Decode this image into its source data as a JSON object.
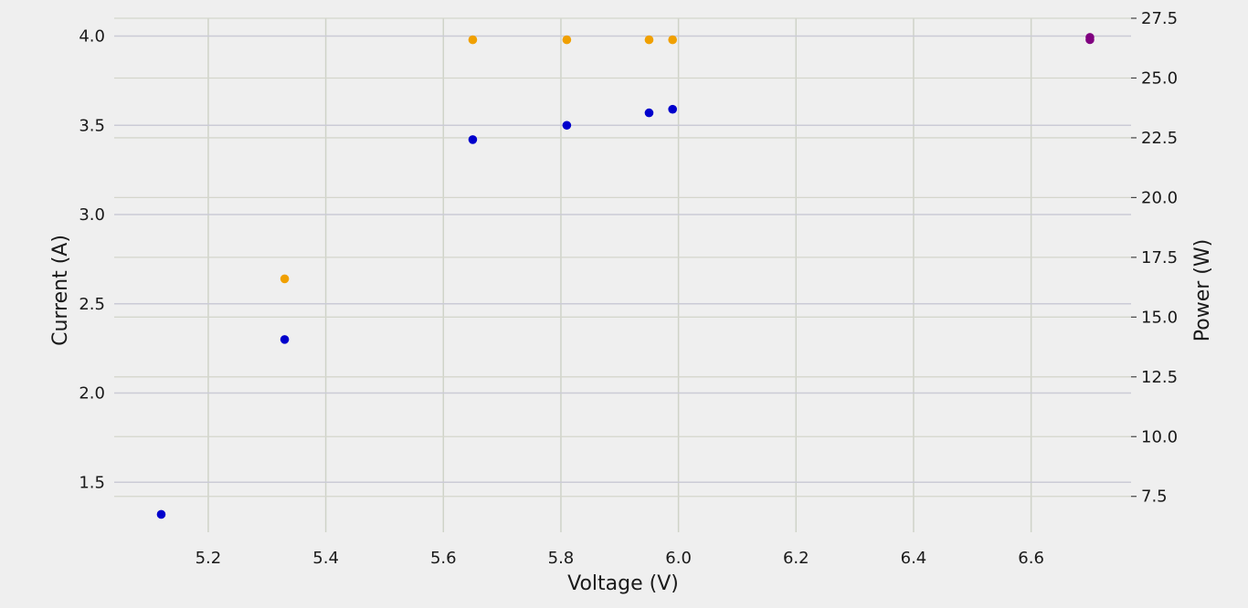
{
  "chart_data": {
    "type": "scatter",
    "title": "",
    "xlabel": "Voltage (V)",
    "ylabel": "Current (A)",
    "y2label": "Power (W)",
    "xlim": [
      5.04,
      6.77
    ],
    "ylim": [
      1.22,
      4.1
    ],
    "y2lim": [
      6.0,
      27.5
    ],
    "x_ticks": [
      "5.2",
      "5.4",
      "5.6",
      "5.8",
      "6.0",
      "6.2",
      "6.4",
      "6.6"
    ],
    "y_ticks": [
      "1.5",
      "2.0",
      "2.5",
      "3.0",
      "3.5",
      "4.0"
    ],
    "y2_ticks": [
      "7.5",
      "10.0",
      "12.5",
      "15.0",
      "17.5",
      "20.0",
      "22.5",
      "25.0",
      "27.5"
    ],
    "grid": true,
    "series": [
      {
        "axis": "left",
        "color": "#0000cc",
        "points": [
          {
            "x": 5.12,
            "y": 1.32
          },
          {
            "x": 5.33,
            "y": 2.3
          },
          {
            "x": 5.65,
            "y": 3.42
          },
          {
            "x": 5.81,
            "y": 3.5
          },
          {
            "x": 5.95,
            "y": 3.57
          },
          {
            "x": 5.99,
            "y": 3.59
          },
          {
            "x": 6.7,
            "y": 3.98
          }
        ]
      },
      {
        "axis": "right",
        "color": "#f0a000",
        "points": [
          {
            "x": 5.33,
            "y": 16.6
          },
          {
            "x": 5.65,
            "y": 26.6
          },
          {
            "x": 5.81,
            "y": 26.6
          },
          {
            "x": 5.95,
            "y": 26.6
          },
          {
            "x": 5.99,
            "y": 26.6
          },
          {
            "x": 6.7,
            "y": 26.7
          }
        ]
      }
    ],
    "overlap_color": "#800080"
  }
}
